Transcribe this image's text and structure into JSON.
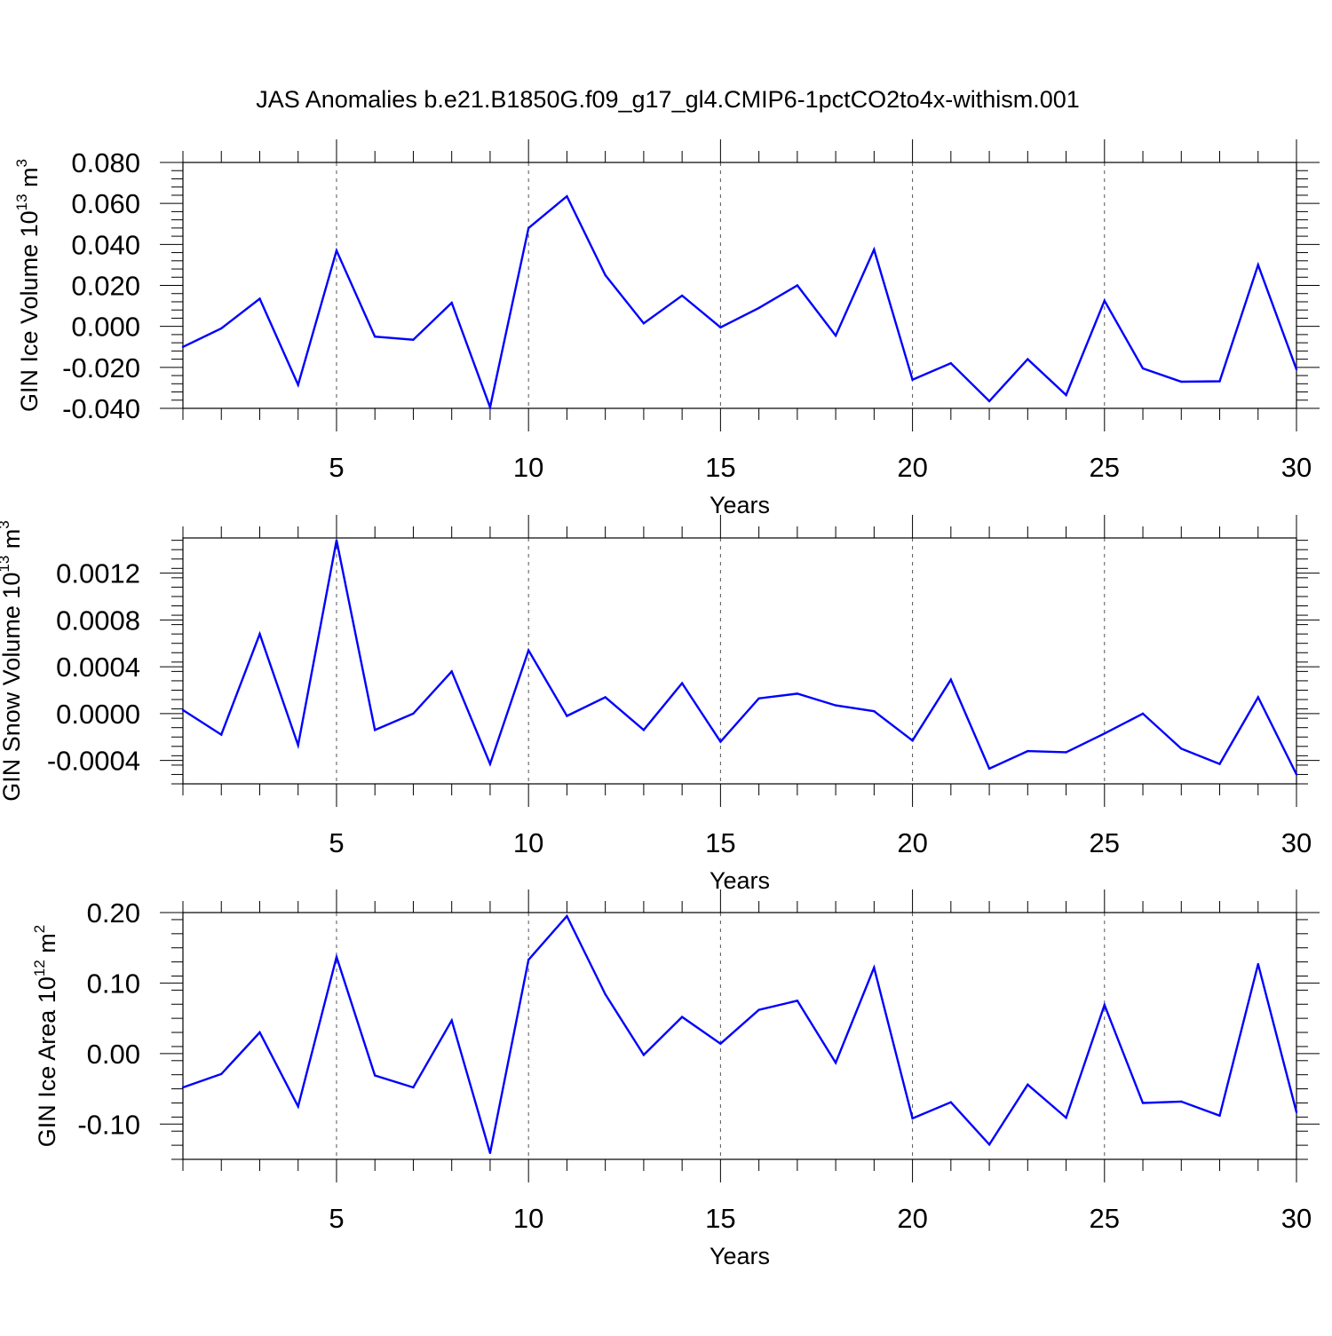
{
  "title": "JAS Anomalies b.e21.B1850G.f09_g17_gl4.CMIP6-1pctCO2to4x-withism.001",
  "line_color": "#0000ff",
  "chart_data": [
    {
      "type": "line",
      "ylabel_main": "GIN Ice Volume 10",
      "ylabel_exp": "13",
      "ylabel_unit": " m",
      "ylabel_unit_exp": "3",
      "xlabel": "Years",
      "xlim": [
        1,
        30
      ],
      "ylim": [
        -0.04,
        0.08
      ],
      "yticks": [
        -0.04,
        -0.02,
        0.0,
        0.02,
        0.04,
        0.06,
        0.08
      ],
      "ytick_labels": [
        "-0.040",
        "-0.020",
        "0.000",
        "0.020",
        "0.040",
        "0.060",
        "0.080"
      ],
      "xticks": [
        5,
        10,
        15,
        20,
        25,
        30
      ],
      "xtick_labels": [
        "5",
        "10",
        "15",
        "20",
        "25",
        "30"
      ],
      "grid_x": [
        5,
        10,
        15,
        20,
        25
      ],
      "x": [
        1,
        2,
        3,
        4,
        5,
        6,
        7,
        8,
        9,
        10,
        11,
        12,
        13,
        14,
        15,
        16,
        17,
        18,
        19,
        20,
        21,
        22,
        23,
        24,
        25,
        26,
        27,
        28,
        29,
        30
      ],
      "values": [
        -0.01,
        -0.001,
        0.0135,
        -0.0285,
        0.037,
        -0.005,
        -0.0065,
        0.0115,
        -0.0395,
        0.048,
        0.0635,
        0.025,
        0.0015,
        0.015,
        -0.0005,
        0.009,
        0.02,
        -0.0045,
        0.0375,
        -0.026,
        -0.018,
        -0.0365,
        -0.016,
        -0.0335,
        0.0125,
        -0.0205,
        -0.027,
        -0.0268,
        0.03,
        -0.021
      ]
    },
    {
      "type": "line",
      "ylabel_main": "GIN Snow Volume 10",
      "ylabel_exp": "13",
      "ylabel_unit": " m",
      "ylabel_unit_exp": "3",
      "xlabel": "Years",
      "xlim": [
        1,
        30
      ],
      "ylim": [
        -0.0006,
        0.0015
      ],
      "yticks": [
        -0.0004,
        0.0,
        0.0004,
        0.0008,
        0.0012
      ],
      "ytick_labels": [
        "-0.0004",
        "0.0000",
        "0.0004",
        "0.0008",
        "0.0012"
      ],
      "xticks": [
        5,
        10,
        15,
        20,
        25,
        30
      ],
      "xtick_labels": [
        "5",
        "10",
        "15",
        "20",
        "25",
        "30"
      ],
      "grid_x": [
        5,
        10,
        15,
        20,
        25
      ],
      "x": [
        1,
        2,
        3,
        4,
        5,
        6,
        7,
        8,
        9,
        10,
        11,
        12,
        13,
        14,
        15,
        16,
        17,
        18,
        19,
        20,
        21,
        22,
        23,
        24,
        25,
        26,
        27,
        28,
        29,
        30
      ],
      "values": [
        3e-05,
        -0.00018,
        0.00068,
        -0.00027,
        0.00148,
        -0.00014,
        0.0,
        0.00036,
        -0.00043,
        0.00054,
        -2e-05,
        0.00014,
        -0.00014,
        0.00026,
        -0.00024,
        0.00013,
        0.00017,
        7e-05,
        2e-05,
        -0.00023,
        0.00029,
        -0.00047,
        -0.00032,
        -0.00033,
        -0.00017,
        0.0,
        -0.0003,
        -0.00043,
        0.00014,
        -0.00052
      ]
    },
    {
      "type": "line",
      "ylabel_main": "GIN Ice Area 10",
      "ylabel_exp": "12",
      "ylabel_unit": " m",
      "ylabel_unit_exp": "2",
      "xlabel": "Years",
      "xlim": [
        1,
        30
      ],
      "ylim": [
        -0.15,
        0.2
      ],
      "yticks": [
        -0.1,
        0.0,
        0.1,
        0.2
      ],
      "ytick_labels": [
        "-0.10",
        "0.00",
        "0.10",
        "0.20"
      ],
      "xticks": [
        5,
        10,
        15,
        20,
        25,
        30
      ],
      "xtick_labels": [
        "5",
        "10",
        "15",
        "20",
        "25",
        "30"
      ],
      "grid_x": [
        5,
        10,
        15,
        20,
        25
      ],
      "x": [
        1,
        2,
        3,
        4,
        5,
        6,
        7,
        8,
        9,
        10,
        11,
        12,
        13,
        14,
        15,
        16,
        17,
        18,
        19,
        20,
        21,
        22,
        23,
        24,
        25,
        26,
        27,
        28,
        29,
        30
      ],
      "values": [
        -0.048,
        -0.029,
        0.03,
        -0.075,
        0.137,
        -0.031,
        -0.048,
        0.047,
        -0.141,
        0.133,
        0.195,
        0.084,
        -0.002,
        0.052,
        0.014,
        0.062,
        0.075,
        -0.013,
        0.122,
        -0.092,
        -0.069,
        -0.129,
        -0.044,
        -0.091,
        0.069,
        -0.07,
        -0.068,
        -0.088,
        0.127,
        -0.083
      ]
    }
  ]
}
